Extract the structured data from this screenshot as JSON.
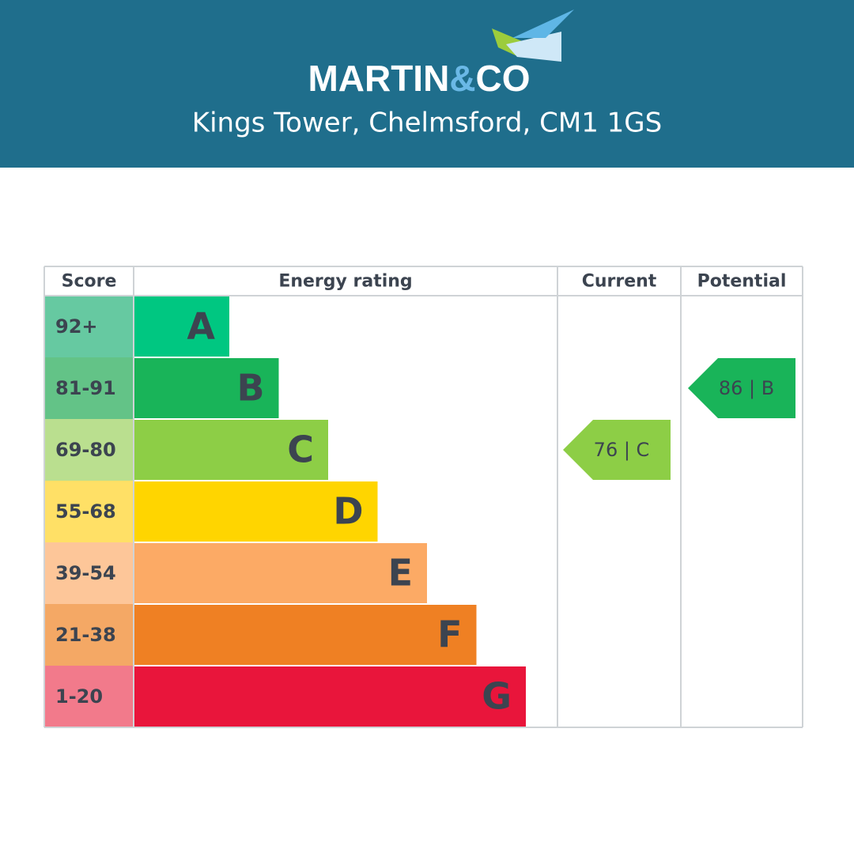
{
  "header": {
    "logo_parts": [
      "MARTIN",
      "&",
      "CO"
    ],
    "address": "Kings Tower, Chelmsford, CM1 1GS"
  },
  "table": {
    "headers": [
      "Score",
      "Energy rating",
      "Current",
      "Potential"
    ],
    "bands": [
      {
        "score": "92+",
        "rating": "A",
        "color": "#00c781",
        "score_color": "#66c9a1"
      },
      {
        "score": "81-91",
        "rating": "B",
        "color": "#19b459",
        "score_color": "#63c387"
      },
      {
        "score": "69-80",
        "rating": "C",
        "color": "#8dce46",
        "score_color": "#badf8f"
      },
      {
        "score": "55-68",
        "rating": "D",
        "color": "#ffd500",
        "score_color": "#ffe066"
      },
      {
        "score": "39-54",
        "rating": "E",
        "color": "#fcaa65",
        "score_color": "#fdc699"
      },
      {
        "score": "21-38",
        "rating": "F",
        "color": "#ef8023",
        "score_color": "#f4a865"
      },
      {
        "score": "1-20",
        "rating": "G",
        "color": "#e9153b",
        "score_color": "#f27a8b"
      }
    ],
    "current": "76 | C",
    "potential": "86 | B"
  }
}
